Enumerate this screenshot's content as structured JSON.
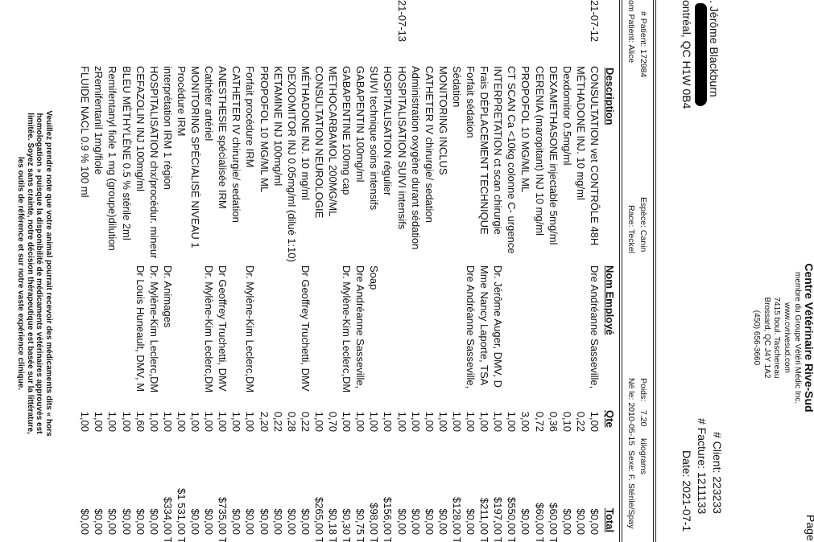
{
  "page_label": "Page 1",
  "clinic": {
    "name": "Centre Vétérinaire Rive-Sud",
    "member": "membre du Groupe Vétéri Médic Inc.",
    "website": "www.cvrivesud.com",
    "street": "7415 boul. Taschereau",
    "city": "Brossard, QC  J4Y 1A2",
    "phone": "(450) 656-3660"
  },
  "invoice": {
    "client": "# Client: 223233",
    "facture": "# Facture: 1211133",
    "date": "Date: 2021-07-1"
  },
  "client": {
    "name": ". Jérôme Blackburn",
    "city": "ontréal, QC H1W 0B4"
  },
  "patient": {
    "number": "# Patient: 172984",
    "name": "om Patient: Alice",
    "species": "Espèce: Canin",
    "breed": "Race: Teckel",
    "weight_label": "Poids:",
    "weight_value": "7.20",
    "weight_unit": "kilograms",
    "birth": "Né le: 2010-05-15",
    "sex": "Sexe: F. Stérile/Spay"
  },
  "columns": {
    "description": "Description",
    "employee": "Nom Employé",
    "qty": "Qte",
    "total": "Total"
  },
  "rows": [
    {
      "date": "21-07-12",
      "desc": "CONSULTATION vet CONTRÔLE 48H",
      "emp": "Dre Andréanne Sasseville,",
      "qty": "1,00",
      "total": "$0,00",
      "tax": ""
    },
    {
      "date": "",
      "desc": "MÉTHADONE INJ.  10 mg/ml",
      "emp": "",
      "qty": "0,22",
      "total": "$0,00",
      "tax": ""
    },
    {
      "date": "",
      "desc": "Dexdomitor 0.5mg/ml",
      "emp": "",
      "qty": "0,10",
      "total": "$0,00",
      "tax": ""
    },
    {
      "date": "",
      "desc": "DEXAMETHASONE injectable 5mg/ml",
      "emp": "",
      "qty": "0,36",
      "total": "$60,00",
      "tax": "T"
    },
    {
      "date": "",
      "desc": "CERENIA (maropitant) INJ 10 mg/ml",
      "emp": "",
      "qty": "0,72",
      "total": "$60,00",
      "tax": "T"
    },
    {
      "date": "",
      "desc": "PROPOFOL 10 MG/ML ML",
      "emp": "",
      "qty": "3,00",
      "total": "$0,00",
      "tax": ""
    },
    {
      "date": "",
      "desc": "CT SCAN Ca <10kg colonne C- urgence",
      "emp": "",
      "qty": "1,00",
      "total": "$550,00",
      "tax": "T"
    },
    {
      "date": "",
      "desc": "INTERPRETATION ct scan chirurgie",
      "emp": "Dr. Jérôme Auger, DMV, D",
      "qty": "1,00",
      "total": "$197,00",
      "tax": "T"
    },
    {
      "date": "",
      "desc": "Frais DÉPLACEMENT TECHNIQUE",
      "emp": "Mme Nancy Laporte, TSA",
      "qty": "1,00",
      "total": "$211,00",
      "tax": "T"
    },
    {
      "date": "",
      "desc": "Forfait sédation",
      "emp": "Dre Andréanne Sasseville,",
      "qty": "1,00",
      "total": "$0,00",
      "tax": ""
    },
    {
      "date": "",
      "desc": "Sédation",
      "emp": "",
      "qty": "1,00",
      "total": "$128,00",
      "tax": "T"
    },
    {
      "date": "",
      "desc": "MONITORING INCLUS",
      "emp": "",
      "qty": "1,00",
      "total": "$0,00",
      "tax": ""
    },
    {
      "date": "",
      "desc": "CATHETER IV chirurgie/ sedation",
      "emp": "",
      "qty": "1,00",
      "total": "$0,00",
      "tax": ""
    },
    {
      "date": "",
      "desc": "Administration oxygène durant sédation",
      "emp": "",
      "qty": "1,00",
      "total": "$0,00",
      "tax": ""
    },
    {
      "date": "21-07-13",
      "desc": "HOSPITALISATION SUIVI intensifs",
      "emp": "",
      "qty": "1,00",
      "total": "$0,00",
      "tax": ""
    },
    {
      "date": "",
      "desc": "HOSPITALISATION régulier",
      "emp": "",
      "qty": "1,00",
      "total": "$156,00",
      "tax": "T"
    },
    {
      "date": "",
      "desc": "SUIVI technique soins intensifs",
      "emp": "Soap",
      "qty": "1,00",
      "total": "$98,00",
      "tax": "T"
    },
    {
      "date": "",
      "desc": "GABAPENTIN 100mg/ml",
      "emp": "Dre Andréanne Sasseville,",
      "qty": "1,00",
      "total": "$0,75",
      "tax": "T"
    },
    {
      "date": "",
      "desc": "GABAPENTINE 100mg cap",
      "emp": "Dr. Mylène-Kim Leclerc,DM",
      "qty": "1,00",
      "total": "$0,30",
      "tax": "T"
    },
    {
      "date": "",
      "desc": "METHOCARBAMOL 200MG/ML",
      "emp": "",
      "qty": "0,70",
      "total": "$0,18",
      "tax": "T"
    },
    {
      "date": "",
      "desc": "CONSULTATION NEUROLOGIE",
      "emp": "",
      "qty": "1,00",
      "total": "$265,00",
      "tax": "T"
    },
    {
      "date": "",
      "desc": "MÉTHADONE INJ.  10 mg/ml",
      "emp": "Dr Geoffrey Truchetti, DMV",
      "qty": "0,22",
      "total": "$0,00",
      "tax": ""
    },
    {
      "date": "",
      "desc": "DEXDOMITOR INJ 0.05mg/ml (dilué 1:10)",
      "emp": "",
      "qty": "0,28",
      "total": "$0,00",
      "tax": ""
    },
    {
      "date": "",
      "desc": "KETAMINE INJ 100mg/ml",
      "emp": "",
      "qty": "0,22",
      "total": "$0,00",
      "tax": ""
    },
    {
      "date": "",
      "desc": "PROPOFOL 10 MG/ML ML",
      "emp": "",
      "qty": "2,20",
      "total": "$0,00",
      "tax": ""
    },
    {
      "date": "",
      "desc": "Forfait procédure IRM",
      "emp": "Dr. Mylène-Kim Leclerc,DM",
      "qty": "1,00",
      "total": "$0,00",
      "tax": ""
    },
    {
      "date": "",
      "desc": "CATHETER IV chirurgie/ sedation",
      "emp": "",
      "qty": "1,00",
      "total": "$0,00",
      "tax": ""
    },
    {
      "date": "",
      "desc": "ANESTHESIE spécialisée IRM",
      "emp": "Dr Geoffrey Truchetti, DMV",
      "qty": "1,00",
      "total": "$735,00",
      "tax": "T"
    },
    {
      "date": "",
      "desc": "Cathéter artériel",
      "emp": "Dr. Mylène-Kim Leclerc,DM",
      "qty": "1,00",
      "total": "$0,00",
      "tax": ""
    },
    {
      "date": "",
      "desc": "MONITORING SPÉCIALISÉ NIVEAU 1",
      "emp": "",
      "qty": "1,00",
      "total": "$0,00",
      "tax": ""
    },
    {
      "date": "",
      "desc": "Procédure IRM",
      "emp": "",
      "qty": "1,00",
      "total": "$1 531,00",
      "tax": "T"
    },
    {
      "date": "",
      "desc": "interprétation IRM 1 région",
      "emp": "Dr. Animages",
      "qty": "1,00",
      "total": "$334,00",
      "tax": "T"
    },
    {
      "date": "",
      "desc": "HOSPITALISATION chx/procédur. mineur",
      "emp": "Dr. Mylène-Kim Leclerc,DM",
      "qty": "1,00",
      "total": "$0,00",
      "tax": ""
    },
    {
      "date": "",
      "desc": "CEFAZOLIN INJ 100mg/ml",
      "emp": "Dr Louis Huneault, DMV, M",
      "qty": "1,60",
      "total": "$0,00",
      "tax": ""
    },
    {
      "date": "",
      "desc": "BLEU MÉTHYLÈNE 0.5 % stérile 2ml",
      "emp": "",
      "qty": "1,00",
      "total": "$0,00",
      "tax": ""
    },
    {
      "date": "",
      "desc": "Remifentanyl fiole 1 mg (groupe)dilution",
      "emp": "",
      "qty": "1,00",
      "total": "$0,00",
      "tax": ""
    },
    {
      "date": "",
      "desc": "zRemifentanil 1mg/fiole",
      "emp": "",
      "qty": "1,00",
      "total": "$0,00",
      "tax": ""
    },
    {
      "date": "",
      "desc": "FLUIDE NACL 0.9 % 100 ml",
      "emp": "",
      "qty": "1,00",
      "total": "$0,00",
      "tax": ""
    }
  ],
  "footnote": [
    "Veuillez prendre note que votre animal pourrait recevoir des médicaments dits « hors",
    "homologation » puisque la disponibilité de médicaments vétérinaires approuvés est",
    "limitée. Soyez sans crainte, notre décision thérapeutique est basée sur la littérature,",
    "les outils de référence et sur notre vaste expérience clinique."
  ],
  "orientation": "rotated 90 degrees clockwise",
  "redaction_color": "#000000"
}
